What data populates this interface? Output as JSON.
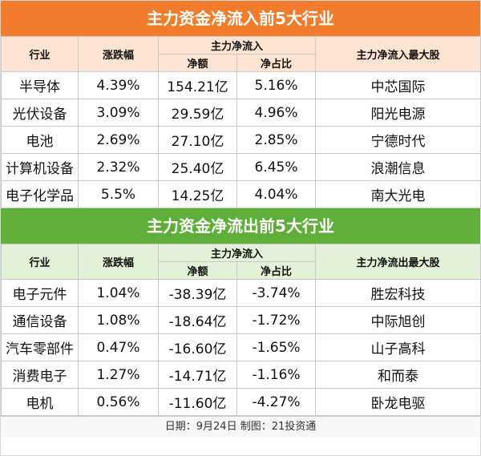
{
  "inflow": {
    "title": "主力资金净流入前5大行业",
    "headers": {
      "industry": "行业",
      "change": "涨跌幅",
      "group": "主力净流入",
      "amount": "净额",
      "ratio": "净占比",
      "top_stock": "主力净流入最大股"
    },
    "rows": [
      {
        "industry": "半导体",
        "change": "4.39%",
        "amount": "154.21亿",
        "ratio": "5.16%",
        "top_stock": "中芯国际"
      },
      {
        "industry": "光伏设备",
        "change": "3.09%",
        "amount": "29.59亿",
        "ratio": "4.96%",
        "top_stock": "阳光电源"
      },
      {
        "industry": "电池",
        "change": "2.69%",
        "amount": "27.10亿",
        "ratio": "2.85%",
        "top_stock": "宁德时代"
      },
      {
        "industry": "计算机设备",
        "change": "2.32%",
        "amount": "25.40亿",
        "ratio": "6.45%",
        "top_stock": "浪潮信息"
      },
      {
        "industry": "电子化学品",
        "change": "5.5%",
        "amount": "14.25亿",
        "ratio": "4.04%",
        "top_stock": "南大光电"
      }
    ]
  },
  "outflow": {
    "title": "主力资金净流出前5大行业",
    "headers": {
      "industry": "行业",
      "change": "涨跌幅",
      "group": "主力净流入",
      "amount": "净额",
      "ratio": "净占比",
      "top_stock": "主力净流出最大股"
    },
    "rows": [
      {
        "industry": "电子元件",
        "change": "1.04%",
        "amount": "-38.39亿",
        "ratio": "-3.74%",
        "top_stock": "胜宏科技"
      },
      {
        "industry": "通信设备",
        "change": "1.08%",
        "amount": "-18.64亿",
        "ratio": "-1.72%",
        "top_stock": "中际旭创"
      },
      {
        "industry": "汽车零部件",
        "change": "0.47%",
        "amount": "-16.60亿",
        "ratio": "-1.65%",
        "top_stock": "山子高科"
      },
      {
        "industry": "消费电子",
        "change": "1.27%",
        "amount": "-14.71亿",
        "ratio": "-1.16%",
        "top_stock": "和而泰"
      },
      {
        "industry": "电机",
        "change": "0.56%",
        "amount": "-11.60亿",
        "ratio": "-4.27%",
        "top_stock": "卧龙电驱"
      }
    ]
  },
  "footer": "日期：9月24日 制图：21投资通",
  "colors": {
    "orange": "#f07c2c",
    "green": "#5fae3a",
    "orange_header": "#fde4d2",
    "green_header": "#e3f1d8"
  }
}
